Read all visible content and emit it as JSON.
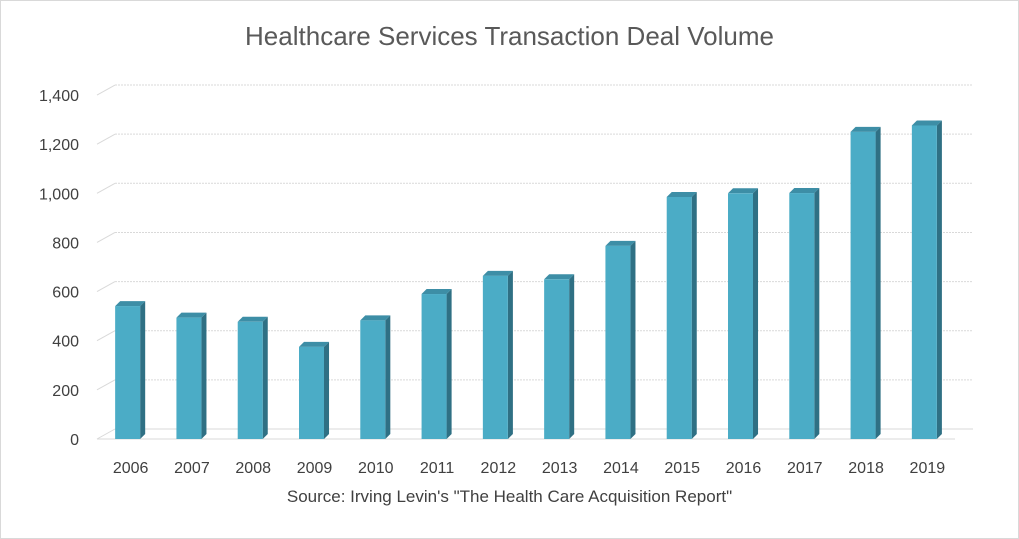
{
  "chart_data": {
    "type": "bar",
    "title": "Healthcare Services Transaction Deal Volume",
    "source": "Source: Irving Levin's \"The Health Care Acquisition Report\"",
    "categories": [
      "2006",
      "2007",
      "2008",
      "2009",
      "2010",
      "2011",
      "2012",
      "2013",
      "2014",
      "2015",
      "2016",
      "2017",
      "2018",
      "2019"
    ],
    "values": [
      541,
      494,
      477,
      375,
      483,
      590,
      664,
      650,
      786,
      985,
      1000,
      1001,
      1250,
      1276
    ],
    "ylim": [
      0,
      1400
    ],
    "yticks": [
      0,
      200,
      400,
      600,
      800,
      1000,
      1200,
      1400
    ],
    "ytick_labels": [
      "0",
      "200",
      "400",
      "600",
      "800",
      "1,000",
      "1,200",
      "1,400"
    ],
    "grid": true,
    "style": "3d-column",
    "colors": {
      "front": "#4bacc6",
      "side": "#2f7084",
      "top": "#3d8ea6",
      "grid": "#d9d9d9",
      "text": "#404040"
    }
  }
}
